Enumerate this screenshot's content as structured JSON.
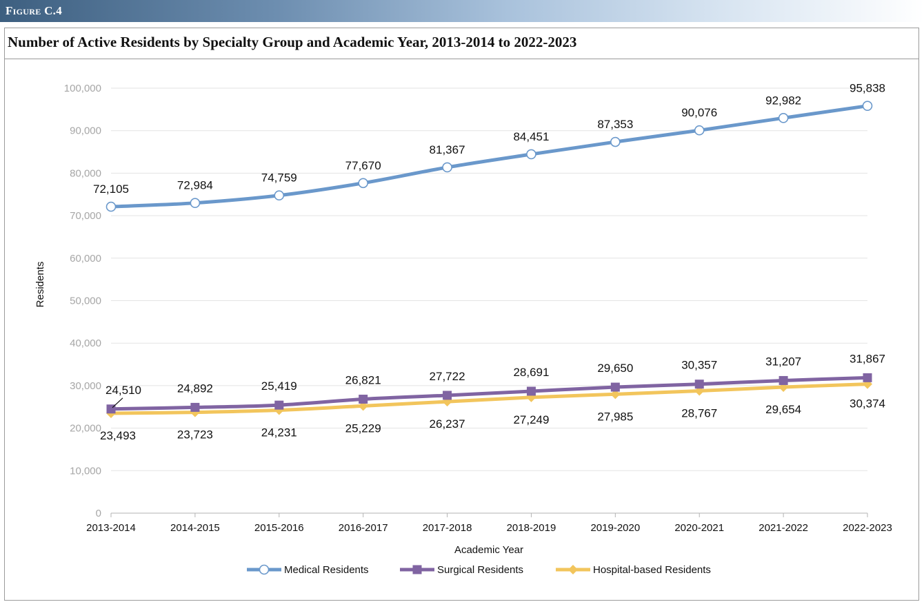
{
  "figure_label": "Figure C.4",
  "title": "Number of Active Residents by Specialty Group and Academic Year, 2013-2014 to 2022-2023",
  "chart_data": {
    "type": "line",
    "title": "",
    "xlabel": "Academic Year",
    "ylabel": "Residents",
    "ylim": [
      0,
      100000
    ],
    "y_ticks": [
      0,
      10000,
      20000,
      30000,
      40000,
      50000,
      60000,
      70000,
      80000,
      90000,
      100000
    ],
    "y_tick_labels": [
      "0",
      "10,000",
      "20,000",
      "30,000",
      "40,000",
      "50,000",
      "60,000",
      "70,000",
      "80,000",
      "90,000",
      "100,000"
    ],
    "grid": "horizontal",
    "legend_position": "bottom",
    "categories": [
      "2013-2014",
      "2014-2015",
      "2015-2016",
      "2016-2017",
      "2017-2018",
      "2018-2019",
      "2019-2020",
      "2020-2021",
      "2021-2022",
      "2022-2023"
    ],
    "series": [
      {
        "name": "Medical Residents",
        "color": "#6a98cb",
        "marker": "circle-open",
        "values": [
          72105,
          72984,
          74759,
          77670,
          81367,
          84451,
          87353,
          90076,
          92982,
          95838
        ],
        "labels": [
          "72,105",
          "72,984",
          "74,759",
          "77,670",
          "81,367",
          "84,451",
          "87,353",
          "90,076",
          "92,982",
          "95,838"
        ]
      },
      {
        "name": "Surgical Residents",
        "color": "#8064a2",
        "marker": "square",
        "values": [
          24510,
          24892,
          25419,
          26821,
          27722,
          28691,
          29650,
          30357,
          31207,
          31867
        ],
        "labels": [
          "24,510",
          "24,892",
          "25,419",
          "26,821",
          "27,722",
          "28,691",
          "29,650",
          "30,357",
          "31,207",
          "31,867"
        ]
      },
      {
        "name": "Hospital-based Residents",
        "color": "#f2c55c",
        "marker": "diamond",
        "values": [
          23493,
          23723,
          24231,
          25229,
          26237,
          27249,
          27985,
          28767,
          29654,
          30374
        ],
        "labels": [
          "23,493",
          "23,723",
          "24,231",
          "25,229",
          "26,237",
          "27,249",
          "27,985",
          "28,767",
          "29,654",
          "30,374"
        ]
      }
    ]
  }
}
